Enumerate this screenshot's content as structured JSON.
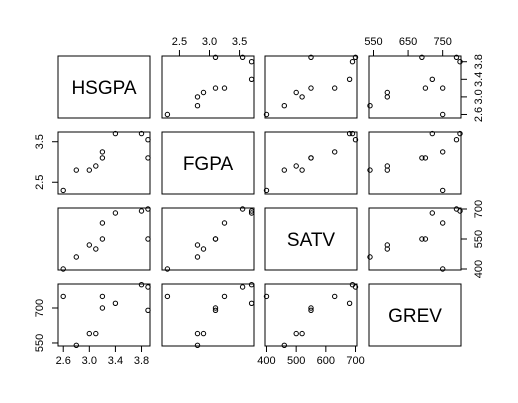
{
  "chart_data": {
    "type": "scatter-matrix",
    "variables": [
      "HSGPA",
      "FGPA",
      "SATV",
      "GREV"
    ],
    "observations": {
      "HSGPA": [
        3.9,
        3.9,
        2.6,
        3.8,
        3.0,
        3.4,
        3.2,
        3.1,
        3.2,
        2.8
      ],
      "FGPA": [
        3.55,
        3.1,
        2.3,
        3.7,
        2.8,
        3.7,
        3.25,
        2.9,
        3.1,
        2.8
      ],
      "SATV": [
        700,
        550,
        400,
        690,
        520,
        680,
        630,
        500,
        550,
        460
      ],
      "GREV": [
        790,
        690,
        750,
        800,
        590,
        720,
        750,
        590,
        700,
        540
      ]
    },
    "axis_ticks": {
      "HSGPA": [
        "2.6",
        "3.0",
        "3.4",
        "3.8"
      ],
      "FGPA": [
        "2.5",
        "3.0",
        "3.5"
      ],
      "SATV": [
        "400",
        "550",
        "700"
      ],
      "GREV": [
        "550",
        "650",
        "750"
      ],
      "SATV_bottom": [
        "400",
        "500",
        "600",
        "700"
      ],
      "FGPA_left": [
        "2.5",
        "3.5"
      ],
      "GREV_left": [
        "550",
        "700"
      ]
    },
    "ranges": {
      "HSGPA": [
        2.52,
        3.93
      ],
      "FGPA": [
        2.21,
        3.74
      ],
      "SATV": [
        395,
        705
      ],
      "GREV": [
        537,
        803
      ]
    },
    "grid": false,
    "legend": "none",
    "point_style": "open-circle",
    "color": "#000000"
  }
}
